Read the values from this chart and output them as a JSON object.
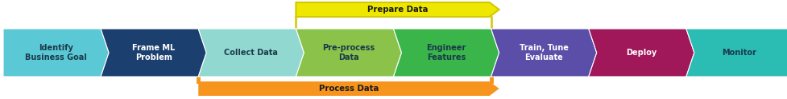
{
  "steps": [
    {
      "label": "Identify\nBusiness Goal",
      "color": "#5BC8D5",
      "text_color": "#1a3a4a"
    },
    {
      "label": "Frame ML\nProblem",
      "color": "#1B3F6E",
      "text_color": "#ffffff"
    },
    {
      "label": "Collect Data",
      "color": "#90D8D0",
      "text_color": "#1a3a4a"
    },
    {
      "label": "Pre-process\nData",
      "color": "#8BC34A",
      "text_color": "#1a3a4a"
    },
    {
      "label": "Engineer\nFeatures",
      "color": "#39B54A",
      "text_color": "#1a3a4a"
    },
    {
      "label": "Train, Tune\nEvaluate",
      "color": "#5B4EA8",
      "text_color": "#ffffff"
    },
    {
      "label": "Deploy",
      "color": "#A0185A",
      "text_color": "#ffffff"
    },
    {
      "label": "Monitor",
      "color": "#2BBDB4",
      "text_color": "#1a3a4a"
    }
  ],
  "fig_width": 9.77,
  "fig_height": 1.24,
  "dpi": 100,
  "background": "#ffffff",
  "process_data_label": "Process Data",
  "process_data_color": "#F7941D",
  "process_data_text_color": "#1a1a1a",
  "prepare_data_label": "Prepare Data",
  "prepare_data_color": "#EEE800",
  "prepare_data_text_color": "#1a1a1a",
  "prepare_border_color": "#D4C800",
  "fontsize": 7.0
}
